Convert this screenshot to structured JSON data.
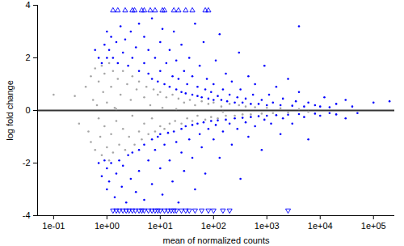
{
  "chart_data": {
    "type": "scatter",
    "x_label": "mean of normalized counts",
    "y_label": "log fold change",
    "log": "x",
    "grid": false,
    "xlim": [
      0.05,
      250000
    ],
    "xticks": [
      {
        "value": 0.1,
        "label": "1e-01"
      },
      {
        "value": 10,
        "label": "1e+01"
      },
      {
        "value": 1000,
        "label": "1e+03"
      },
      {
        "value": 100000,
        "label": "1e+05"
      },
      {
        "value": 1,
        "label": "1e+00"
      },
      {
        "value": 100,
        "label": "1e+02"
      },
      {
        "value": 10000,
        "label": "1e+04"
      }
    ],
    "ylim": [
      -4,
      4
    ],
    "yticks": [
      -4,
      -2,
      0,
      2,
      4
    ],
    "hline": 0,
    "series": [
      {
        "color": "#a6a6a6",
        "marker": "circle",
        "x": [
          0.1,
          0.25,
          0.3,
          0.4,
          0.45,
          0.5,
          0.5,
          0.55,
          0.6,
          0.6,
          0.65,
          0.7,
          0.7,
          0.75,
          0.8,
          0.8,
          0.85,
          0.9,
          0.9,
          1.0,
          1.0,
          1.1,
          1.1,
          1.2,
          1.2,
          1.3,
          1.3,
          1.4,
          1.5,
          1.6,
          1.7,
          1.8,
          2.0,
          2.0,
          2.2,
          2.4,
          2.6,
          2.8,
          3.0,
          3.0,
          3.3,
          3.6,
          4.0,
          4.0,
          4.5,
          5.0,
          5.0,
          5.5,
          6.0,
          6.5,
          7.0,
          7.5,
          8,
          9,
          10,
          10,
          11,
          12,
          13,
          15,
          17,
          19,
          22,
          25,
          28,
          32,
          36,
          40,
          45,
          50,
          60,
          70,
          80,
          90,
          100,
          120,
          140,
          170,
          200,
          250,
          300,
          350,
          400,
          500,
          600,
          800,
          1000,
          1300,
          1800,
          2500,
          4000,
          6000,
          1.5,
          20,
          150
        ],
        "values": [
          0.6,
          0.55,
          -0.5,
          0.9,
          -0.8,
          1.3,
          -1.2,
          0.4,
          1.6,
          -1.5,
          0.2,
          -0.3,
          1.1,
          -1.0,
          1.7,
          -1.7,
          0.7,
          -0.6,
          1.4,
          -1.4,
          0.3,
          1.8,
          -1.9,
          0.9,
          -0.9,
          1.5,
          -1.6,
          0.1,
          -0.4,
          1.2,
          -1.3,
          0.6,
          -0.7,
          1.5,
          -1.5,
          1.0,
          -1.0,
          0.4,
          -0.2,
          1.3,
          -1.3,
          0.8,
          -0.8,
          1.1,
          -1.1,
          0.5,
          -0.5,
          0.9,
          -0.9,
          0.2,
          -0.3,
          0.8,
          -0.8,
          0.6,
          -0.6,
          0.7,
          0.1,
          -0.7,
          0.5,
          -0.5,
          0.6,
          -0.4,
          0.45,
          -0.5,
          0.3,
          -0.3,
          0.4,
          -0.4,
          0.2,
          -0.2,
          0.35,
          -0.35,
          0.25,
          -0.25,
          0.3,
          -0.3,
          0.15,
          -0.2,
          0.25,
          -0.2,
          0.2,
          -0.15,
          0.15,
          -0.15,
          0.12,
          -0.12,
          0.1,
          -0.1,
          0.08,
          -0.08,
          0.05,
          -0.05,
          0.05,
          0.05,
          -0.05
        ]
      },
      {
        "color": "#0000ff",
        "marker": "circle",
        "x": [
          0.6,
          0.7,
          0.8,
          0.9,
          1.0,
          1.0,
          1.1,
          1.2,
          1.3,
          1.5,
          1.6,
          1.8,
          2.0,
          2.2,
          2.5,
          2.8,
          3,
          3.5,
          4,
          4,
          5,
          5,
          6,
          6,
          7,
          7,
          8,
          9,
          10,
          10,
          11,
          12,
          13,
          15,
          15,
          17,
          18,
          20,
          20,
          22,
          25,
          25,
          28,
          30,
          32,
          35,
          40,
          40,
          45,
          50,
          50,
          55,
          60,
          65,
          70,
          75,
          80,
          90,
          100,
          100,
          110,
          120,
          130,
          140,
          150,
          170,
          180,
          200,
          220,
          250,
          280,
          300,
          320,
          350,
          400,
          450,
          500,
          550,
          600,
          700,
          800,
          900,
          1000,
          1100,
          1300,
          1500,
          1800,
          2000,
          2500,
          3000,
          3500,
          4000,
          4000,
          5000,
          6000,
          8000,
          10000,
          12000,
          15000,
          20000,
          30000,
          40000,
          100000,
          200000,
          0.7,
          0.8,
          0.9,
          1.0,
          1.0,
          1.1,
          1.2,
          1.4,
          1.5,
          1.7,
          1.9,
          2.0,
          2.3,
          2.5,
          2.8,
          3,
          3.5,
          4,
          4,
          5,
          5,
          6,
          7,
          7,
          8,
          9,
          10,
          10,
          11,
          12,
          14,
          15,
          17,
          18,
          20,
          22,
          25,
          25,
          28,
          30,
          35,
          40,
          40,
          45,
          50,
          55,
          60,
          65,
          70,
          80,
          90,
          100,
          110,
          120,
          130,
          150,
          170,
          200,
          220,
          250,
          280,
          320,
          350,
          400,
          450,
          500,
          600,
          700,
          800,
          900,
          1000,
          1200,
          1500,
          1800,
          2000,
          2500,
          3000,
          4000,
          5000,
          6000,
          8000,
          10000,
          15000,
          20000,
          30000,
          50000
        ],
        "values": [
          2.3,
          2.0,
          1.8,
          2.5,
          2.0,
          3.0,
          2.3,
          2.8,
          2.0,
          2.6,
          1.8,
          3.2,
          2.2,
          2.7,
          1.7,
          3.0,
          2.0,
          2.4,
          1.5,
          3.3,
          1.8,
          2.8,
          1.4,
          2.3,
          3.5,
          1.2,
          2.0,
          1.1,
          1.5,
          2.6,
          3.1,
          1.0,
          1.8,
          0.9,
          2.3,
          1.3,
          3.0,
          0.8,
          1.9,
          1.2,
          0.7,
          2.5,
          1.5,
          0.65,
          1.0,
          2.0,
          0.6,
          1.3,
          3.3,
          0.55,
          0.9,
          1.7,
          0.5,
          2.6,
          0.8,
          1.2,
          0.45,
          0.7,
          0.4,
          1.0,
          1.9,
          0.55,
          2.9,
          0.4,
          0.8,
          1.4,
          0.35,
          0.6,
          1.1,
          0.3,
          0.5,
          2.2,
          0.8,
          0.3,
          0.45,
          1.3,
          0.25,
          0.6,
          1.0,
          0.25,
          0.4,
          1.7,
          0.2,
          0.6,
          0.3,
          0.9,
          0.2,
          0.45,
          1.2,
          0.18,
          0.35,
          0.7,
          3.2,
          0.15,
          0.3,
          0.2,
          0.15,
          0.5,
          0.12,
          0.25,
          0.4,
          0.15,
          0.3,
          0.35,
          -2.0,
          -2.5,
          -1.9,
          -3.0,
          -2.2,
          -2.7,
          -2.0,
          -3.3,
          -2.4,
          -1.9,
          -2.9,
          -2.1,
          -3.5,
          -1.7,
          -2.6,
          -1.6,
          -3.1,
          -1.5,
          -2.3,
          -1.3,
          -3.4,
          -1.9,
          -1.1,
          -2.8,
          -1.5,
          -1.0,
          -2.2,
          -0.9,
          -3.2,
          -1.3,
          -0.85,
          -1.9,
          -2.7,
          -0.8,
          -1.2,
          -3.5,
          -0.7,
          -1.6,
          -2.3,
          -0.6,
          -1.1,
          -0.55,
          -1.8,
          -3.0,
          -0.5,
          -0.9,
          -1.4,
          -0.45,
          -2.4,
          -0.7,
          -0.4,
          -1.1,
          -0.55,
          -0.38,
          -1.8,
          -0.8,
          -0.35,
          -0.5,
          -1.3,
          -0.3,
          -0.7,
          -2.6,
          -0.28,
          -0.45,
          -1.0,
          -0.25,
          -0.6,
          -0.22,
          -1.5,
          -0.35,
          -0.2,
          -0.5,
          -0.18,
          -0.9,
          -0.3,
          -0.16,
          -0.5,
          -0.14,
          -0.25,
          -1.1,
          -0.12,
          -0.2,
          -0.1,
          -0.15,
          -0.3,
          -0.1
        ]
      },
      {
        "color": "#0000ff",
        "marker": "triangle",
        "x": [
          1.3,
          1.6,
          2.2,
          3,
          3.3,
          4.5,
          5,
          6.5,
          8,
          11,
          12,
          18,
          22,
          30,
          40,
          70,
          80
        ],
        "values": [
          3.8,
          3.8,
          3.8,
          3.8,
          3.8,
          3.8,
          3.8,
          3.8,
          3.8,
          3.8,
          3.8,
          3.8,
          3.8,
          3.8,
          3.8,
          3.8,
          3.8
        ]
      },
      {
        "color": "#0000ff",
        "marker": "triangle-down",
        "x": [
          1.3,
          1.5,
          1.7,
          2,
          2.3,
          2.6,
          3,
          3.4,
          4,
          4.5,
          5,
          6,
          7,
          8,
          9,
          10,
          12,
          14,
          16,
          18,
          20,
          25,
          30,
          35,
          45,
          60,
          80,
          100,
          150,
          200,
          2500
        ],
        "values": [
          -3.8,
          -3.8,
          -3.8,
          -3.8,
          -3.8,
          -3.8,
          -3.8,
          -3.8,
          -3.8,
          -3.8,
          -3.8,
          -3.8,
          -3.8,
          -3.8,
          -3.8,
          -3.8,
          -3.8,
          -3.8,
          -3.8,
          -3.8,
          -3.8,
          -3.8,
          -3.8,
          -3.8,
          -3.8,
          -3.8,
          -3.8,
          -3.8,
          -3.8,
          -3.8,
          -3.8
        ]
      }
    ]
  }
}
